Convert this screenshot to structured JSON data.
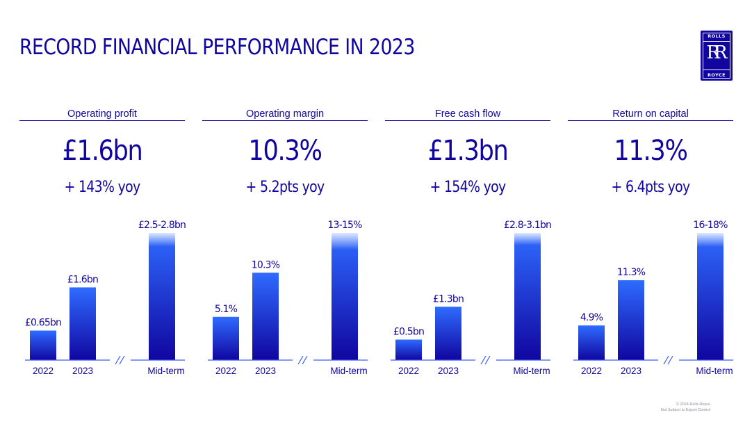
{
  "title": "RECORD FINANCIAL PERFORMANCE IN 2023",
  "logo": {
    "top_word": "ROLLS",
    "bottom_word": "ROYCE",
    "monogram": "RR"
  },
  "footer": {
    "line1": "© 2024 Rolls-Royce",
    "line2": "Not Subject to Export Control"
  },
  "colors": {
    "brand": "#10069f",
    "bar_top": "#2f6bff",
    "bar_bottom": "#10069f",
    "axis": "#3a5cff"
  },
  "kpis": [
    {
      "label": "Operating profit",
      "value": "£1.6bn",
      "change": "+ 143% yoy"
    },
    {
      "label": "Operating margin",
      "value": "10.3%",
      "change": "+ 5.2pts yoy"
    },
    {
      "label": "Free cash flow",
      "value": "£1.3bn",
      "change": "+ 154% yoy"
    },
    {
      "label": "Return on capital",
      "value": "11.3%",
      "change": "+ 6.4pts yoy"
    }
  ],
  "chart_data": [
    {
      "type": "bar",
      "title": "Operating profit",
      "unit": "£bn",
      "categories": [
        "2022",
        "2023",
        "Mid-term"
      ],
      "values": [
        0.65,
        1.6,
        2.65
      ],
      "ranges": [
        null,
        null,
        [
          2.5,
          2.8
        ]
      ],
      "data_labels": [
        "£0.65bn",
        "£1.6bn",
        "£2.5-2.8bn"
      ],
      "axis_break": true
    },
    {
      "type": "bar",
      "title": "Operating margin",
      "unit": "%",
      "categories": [
        "2022",
        "2023",
        "Mid-term"
      ],
      "values": [
        5.1,
        10.3,
        14
      ],
      "ranges": [
        null,
        null,
        [
          13,
          15
        ]
      ],
      "data_labels": [
        "5.1%",
        "10.3%",
        "13-15%"
      ],
      "axis_break": true
    },
    {
      "type": "bar",
      "title": "Free cash flow",
      "unit": "£bn",
      "categories": [
        "2022",
        "2023",
        "Mid-term"
      ],
      "values": [
        0.5,
        1.3,
        2.95
      ],
      "ranges": [
        null,
        null,
        [
          2.8,
          3.1
        ]
      ],
      "data_labels": [
        "£0.5bn",
        "£1.3bn",
        "£2.8-3.1bn"
      ],
      "axis_break": true
    },
    {
      "type": "bar",
      "title": "Return on capital",
      "unit": "%",
      "categories": [
        "2022",
        "2023",
        "Mid-term"
      ],
      "values": [
        4.9,
        11.3,
        17
      ],
      "ranges": [
        null,
        null,
        [
          16,
          18
        ]
      ],
      "data_labels": [
        "4.9%",
        "11.3%",
        "16-18%"
      ],
      "axis_break": true
    }
  ]
}
